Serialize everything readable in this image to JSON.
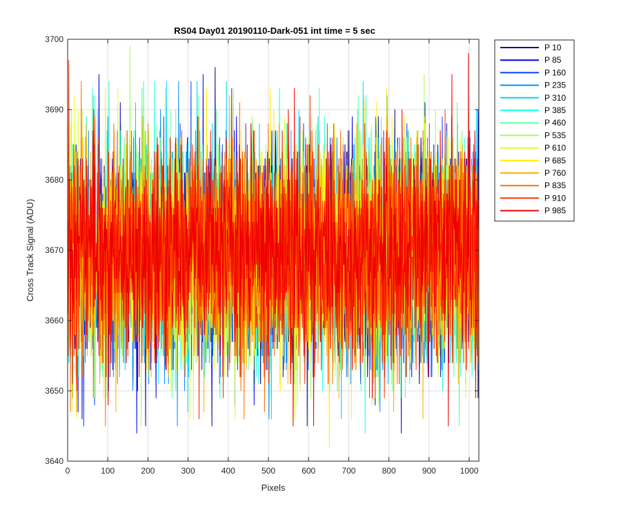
{
  "chart_data": {
    "type": "line",
    "title": "RS04 Day01 20190110-Dark-051 int time = 5 sec",
    "xlabel": "Pixels",
    "ylabel": "Cross Track Signal (ADU)",
    "xlim": [
      0,
      1024
    ],
    "ylim": [
      3640,
      3700
    ],
    "xticks": [
      0,
      100,
      200,
      300,
      400,
      500,
      600,
      700,
      800,
      900,
      1000
    ],
    "yticks": [
      3640,
      3650,
      3660,
      3670,
      3680,
      3690,
      3700
    ],
    "grid": true,
    "legend_location": "outside-top-right",
    "n_points": 1024,
    "series_mean": 3669.5,
    "series_std": 7.5,
    "series": [
      {
        "name": "P 10",
        "color": "#00008f",
        "min": 3645,
        "max": 3696
      },
      {
        "name": "P 85",
        "color": "#0000ea",
        "min": 3644,
        "max": 3695
      },
      {
        "name": "P 160",
        "color": "#0040ff",
        "min": 3645,
        "max": 3694
      },
      {
        "name": "P 235",
        "color": "#008fff",
        "min": 3645,
        "max": 3694
      },
      {
        "name": "P 310",
        "color": "#00d4ff",
        "min": 3646,
        "max": 3694
      },
      {
        "name": "P 385",
        "color": "#1fffe0",
        "min": 3644,
        "max": 3694
      },
      {
        "name": "P 460",
        "color": "#60ffa0",
        "min": 3645,
        "max": 3693
      },
      {
        "name": "P 535",
        "color": "#9fff60",
        "min": 3645,
        "max": 3699
      },
      {
        "name": "P 610",
        "color": "#dfff20",
        "min": 3646,
        "max": 3693
      },
      {
        "name": "P 685",
        "color": "#ffef00",
        "min": 3642,
        "max": 3693
      },
      {
        "name": "P 760",
        "color": "#ffb000",
        "min": 3646,
        "max": 3692
      },
      {
        "name": "P 835",
        "color": "#ff7000",
        "min": 3645,
        "max": 3694
      },
      {
        "name": "P 910",
        "color": "#ff3000",
        "min": 3646,
        "max": 3697
      },
      {
        "name": "P 985",
        "color": "#ee0000",
        "min": 3645,
        "max": 3698
      }
    ]
  }
}
